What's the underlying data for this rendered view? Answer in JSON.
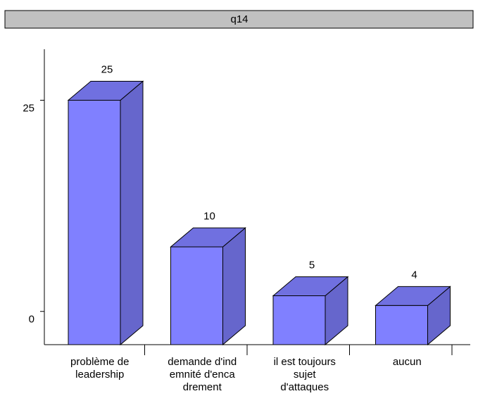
{
  "chart_data": {
    "type": "bar3d",
    "title": "q14",
    "categories": [
      [
        "problème de",
        "leadership"
      ],
      [
        "demande d'ind",
        "emnité d'enca",
        "drement"
      ],
      [
        "il est toujours",
        "sujet",
        "d'attaques"
      ],
      [
        "aucun"
      ]
    ],
    "values": [
      25,
      10,
      5,
      4
    ],
    "color": "#8080ff",
    "ylim": [
      0,
      30
    ],
    "yticks": [
      0,
      25
    ]
  }
}
